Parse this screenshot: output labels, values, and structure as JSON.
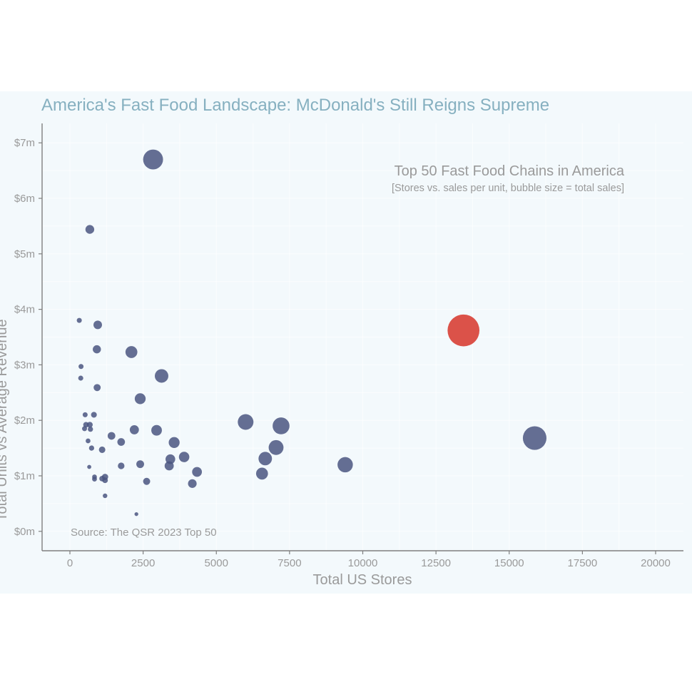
{
  "chart_data": {
    "type": "scatter",
    "title": "America's Fast Food Landscape: McDonald's Still Reigns Supreme",
    "annotation_title": "Top 50 Fast Food Chains in America",
    "annotation_subtitle": "[Stores vs. sales per unit, bubble size = total sales]",
    "xlabel": "Total US Stores",
    "ylabel": "Total Units vs Average Revenue",
    "caption": "Source: The QSR 2023 Top 50",
    "xlim": [
      -950,
      20950
    ],
    "ylim": [
      -0.35,
      7.35
    ],
    "x_ticks": [
      0,
      2500,
      5000,
      7500,
      10000,
      12500,
      15000,
      17500,
      20000
    ],
    "x_tick_labels": [
      "0",
      "2500",
      "5000",
      "7500",
      "10000",
      "12500",
      "15000",
      "17500",
      "20000"
    ],
    "y_ticks": [
      0,
      1,
      2,
      3,
      4,
      5,
      6,
      7
    ],
    "y_tick_labels": [
      "$0m",
      "$1m",
      "$2m",
      "$3m",
      "$4m",
      "$5m",
      "$6m",
      "$7m"
    ],
    "legend": "none",
    "grid": true,
    "colors": {
      "default": "#4a5680",
      "highlight": "#d9433a",
      "background": "#f3f9fc"
    },
    "points": [
      {
        "x": 13440,
        "y": 3.62,
        "size": 48.7,
        "highlight": true
      },
      {
        "x": 15870,
        "y": 1.68,
        "size": 26.7
      },
      {
        "x": 2840,
        "y": 6.7,
        "size": 19.0
      },
      {
        "x": 7210,
        "y": 1.9,
        "size": 13.7
      },
      {
        "x": 6000,
        "y": 1.97,
        "size": 11.8
      },
      {
        "x": 9400,
        "y": 1.2,
        "size": 11.3
      },
      {
        "x": 7040,
        "y": 1.51,
        "size": 10.6
      },
      {
        "x": 3130,
        "y": 2.8,
        "size": 8.8
      },
      {
        "x": 6670,
        "y": 1.31,
        "size": 8.7
      },
      {
        "x": 2100,
        "y": 3.23,
        "size": 6.8
      },
      {
        "x": 6560,
        "y": 1.04,
        "size": 6.8
      },
      {
        "x": 2960,
        "y": 1.82,
        "size": 5.4
      },
      {
        "x": 3900,
        "y": 1.34,
        "size": 5.2
      },
      {
        "x": 2400,
        "y": 2.39,
        "size": 5.7
      },
      {
        "x": 3560,
        "y": 1.6,
        "size": 5.7
      },
      {
        "x": 2200,
        "y": 1.83,
        "size": 4.0
      },
      {
        "x": 3430,
        "y": 1.3,
        "size": 4.5
      },
      {
        "x": 4340,
        "y": 1.07,
        "size": 4.6
      },
      {
        "x": 3390,
        "y": 1.18,
        "size": 4.0
      },
      {
        "x": 4180,
        "y": 0.86,
        "size": 3.6
      },
      {
        "x": 680,
        "y": 5.44,
        "size": 3.7
      },
      {
        "x": 950,
        "y": 3.72,
        "size": 3.5
      },
      {
        "x": 920,
        "y": 3.28,
        "size": 3.2
      },
      {
        "x": 930,
        "y": 2.59,
        "size": 2.4
      },
      {
        "x": 2620,
        "y": 0.9,
        "size": 2.4
      },
      {
        "x": 2400,
        "y": 1.21,
        "size": 2.9
      },
      {
        "x": 1750,
        "y": 1.61,
        "size": 2.8
      },
      {
        "x": 1420,
        "y": 1.72,
        "size": 2.8
      },
      {
        "x": 1750,
        "y": 1.18,
        "size": 2.1
      },
      {
        "x": 1100,
        "y": 1.47,
        "size": 2.0
      },
      {
        "x": 320,
        "y": 3.8,
        "size": 1.2
      },
      {
        "x": 380,
        "y": 2.97,
        "size": 1.2
      },
      {
        "x": 370,
        "y": 2.76,
        "size": 1.2
      },
      {
        "x": 520,
        "y": 2.1,
        "size": 1.2
      },
      {
        "x": 820,
        "y": 2.1,
        "size": 1.6
      },
      {
        "x": 550,
        "y": 1.92,
        "size": 1.5
      },
      {
        "x": 680,
        "y": 1.92,
        "size": 1.6
      },
      {
        "x": 500,
        "y": 1.85,
        "size": 1.2
      },
      {
        "x": 700,
        "y": 1.84,
        "size": 1.3
      },
      {
        "x": 620,
        "y": 1.63,
        "size": 1.1
      },
      {
        "x": 740,
        "y": 1.5,
        "size": 1.3
      },
      {
        "x": 1200,
        "y": 0.98,
        "size": 1.9
      },
      {
        "x": 1100,
        "y": 0.95,
        "size": 1.5
      },
      {
        "x": 1200,
        "y": 0.92,
        "size": 1.5
      },
      {
        "x": 840,
        "y": 0.98,
        "size": 1.1
      },
      {
        "x": 840,
        "y": 0.94,
        "size": 1.1
      },
      {
        "x": 660,
        "y": 1.16,
        "size": 0.8
      },
      {
        "x": 1200,
        "y": 0.64,
        "size": 1.0
      },
      {
        "x": 2270,
        "y": 0.31,
        "size": 0.7
      }
    ]
  }
}
